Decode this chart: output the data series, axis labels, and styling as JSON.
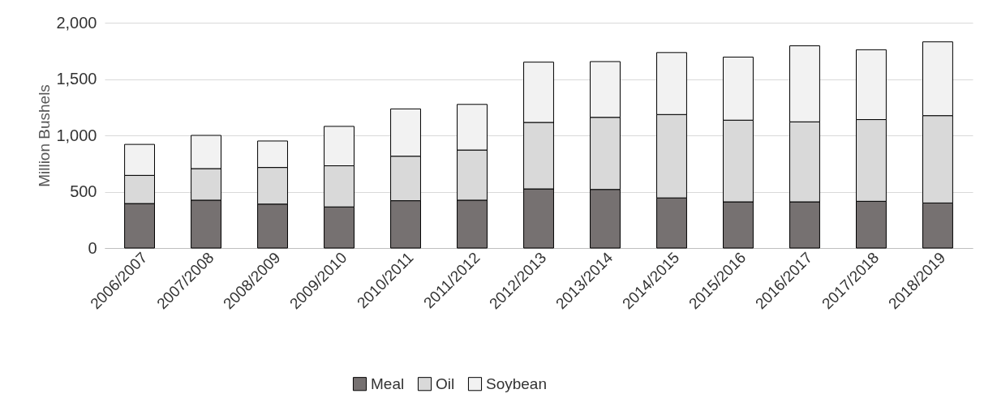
{
  "chart_data": {
    "type": "bar",
    "stacked": true,
    "ylabel": "Million Bushels",
    "categories": [
      "2006/2007",
      "2007/2008",
      "2008/2009",
      "2009/2010",
      "2010/2011",
      "2011/2012",
      "2012/2013",
      "2013/2014",
      "2014/2015",
      "2015/2016",
      "2016/2017",
      "2017/2018",
      "2018/2019"
    ],
    "series": [
      {
        "name": "Meal",
        "color": "#767171",
        "values": [
          395,
          425,
          390,
          365,
          420,
          425,
          525,
          520,
          445,
          410,
          410,
          415,
          400
        ]
      },
      {
        "name": "Oil",
        "color": "#d9d9d9",
        "values": [
          250,
          280,
          325,
          365,
          395,
          445,
          590,
          640,
          740,
          725,
          710,
          725,
          775
        ]
      },
      {
        "name": "Soybean",
        "color": "#f2f2f2",
        "values": [
          275,
          295,
          235,
          350,
          420,
          405,
          535,
          495,
          550,
          560,
          675,
          620,
          655
        ]
      }
    ],
    "ylim": [
      0,
      2000
    ],
    "yticks": [
      0,
      {
        "value": 500,
        "label": "500"
      },
      {
        "value": 1000,
        "label": "1,000"
      },
      {
        "value": 1500,
        "label": "1,500"
      },
      {
        "value": 2000,
        "label": "2,000"
      }
    ],
    "grid": "y",
    "legend": "bottom"
  }
}
